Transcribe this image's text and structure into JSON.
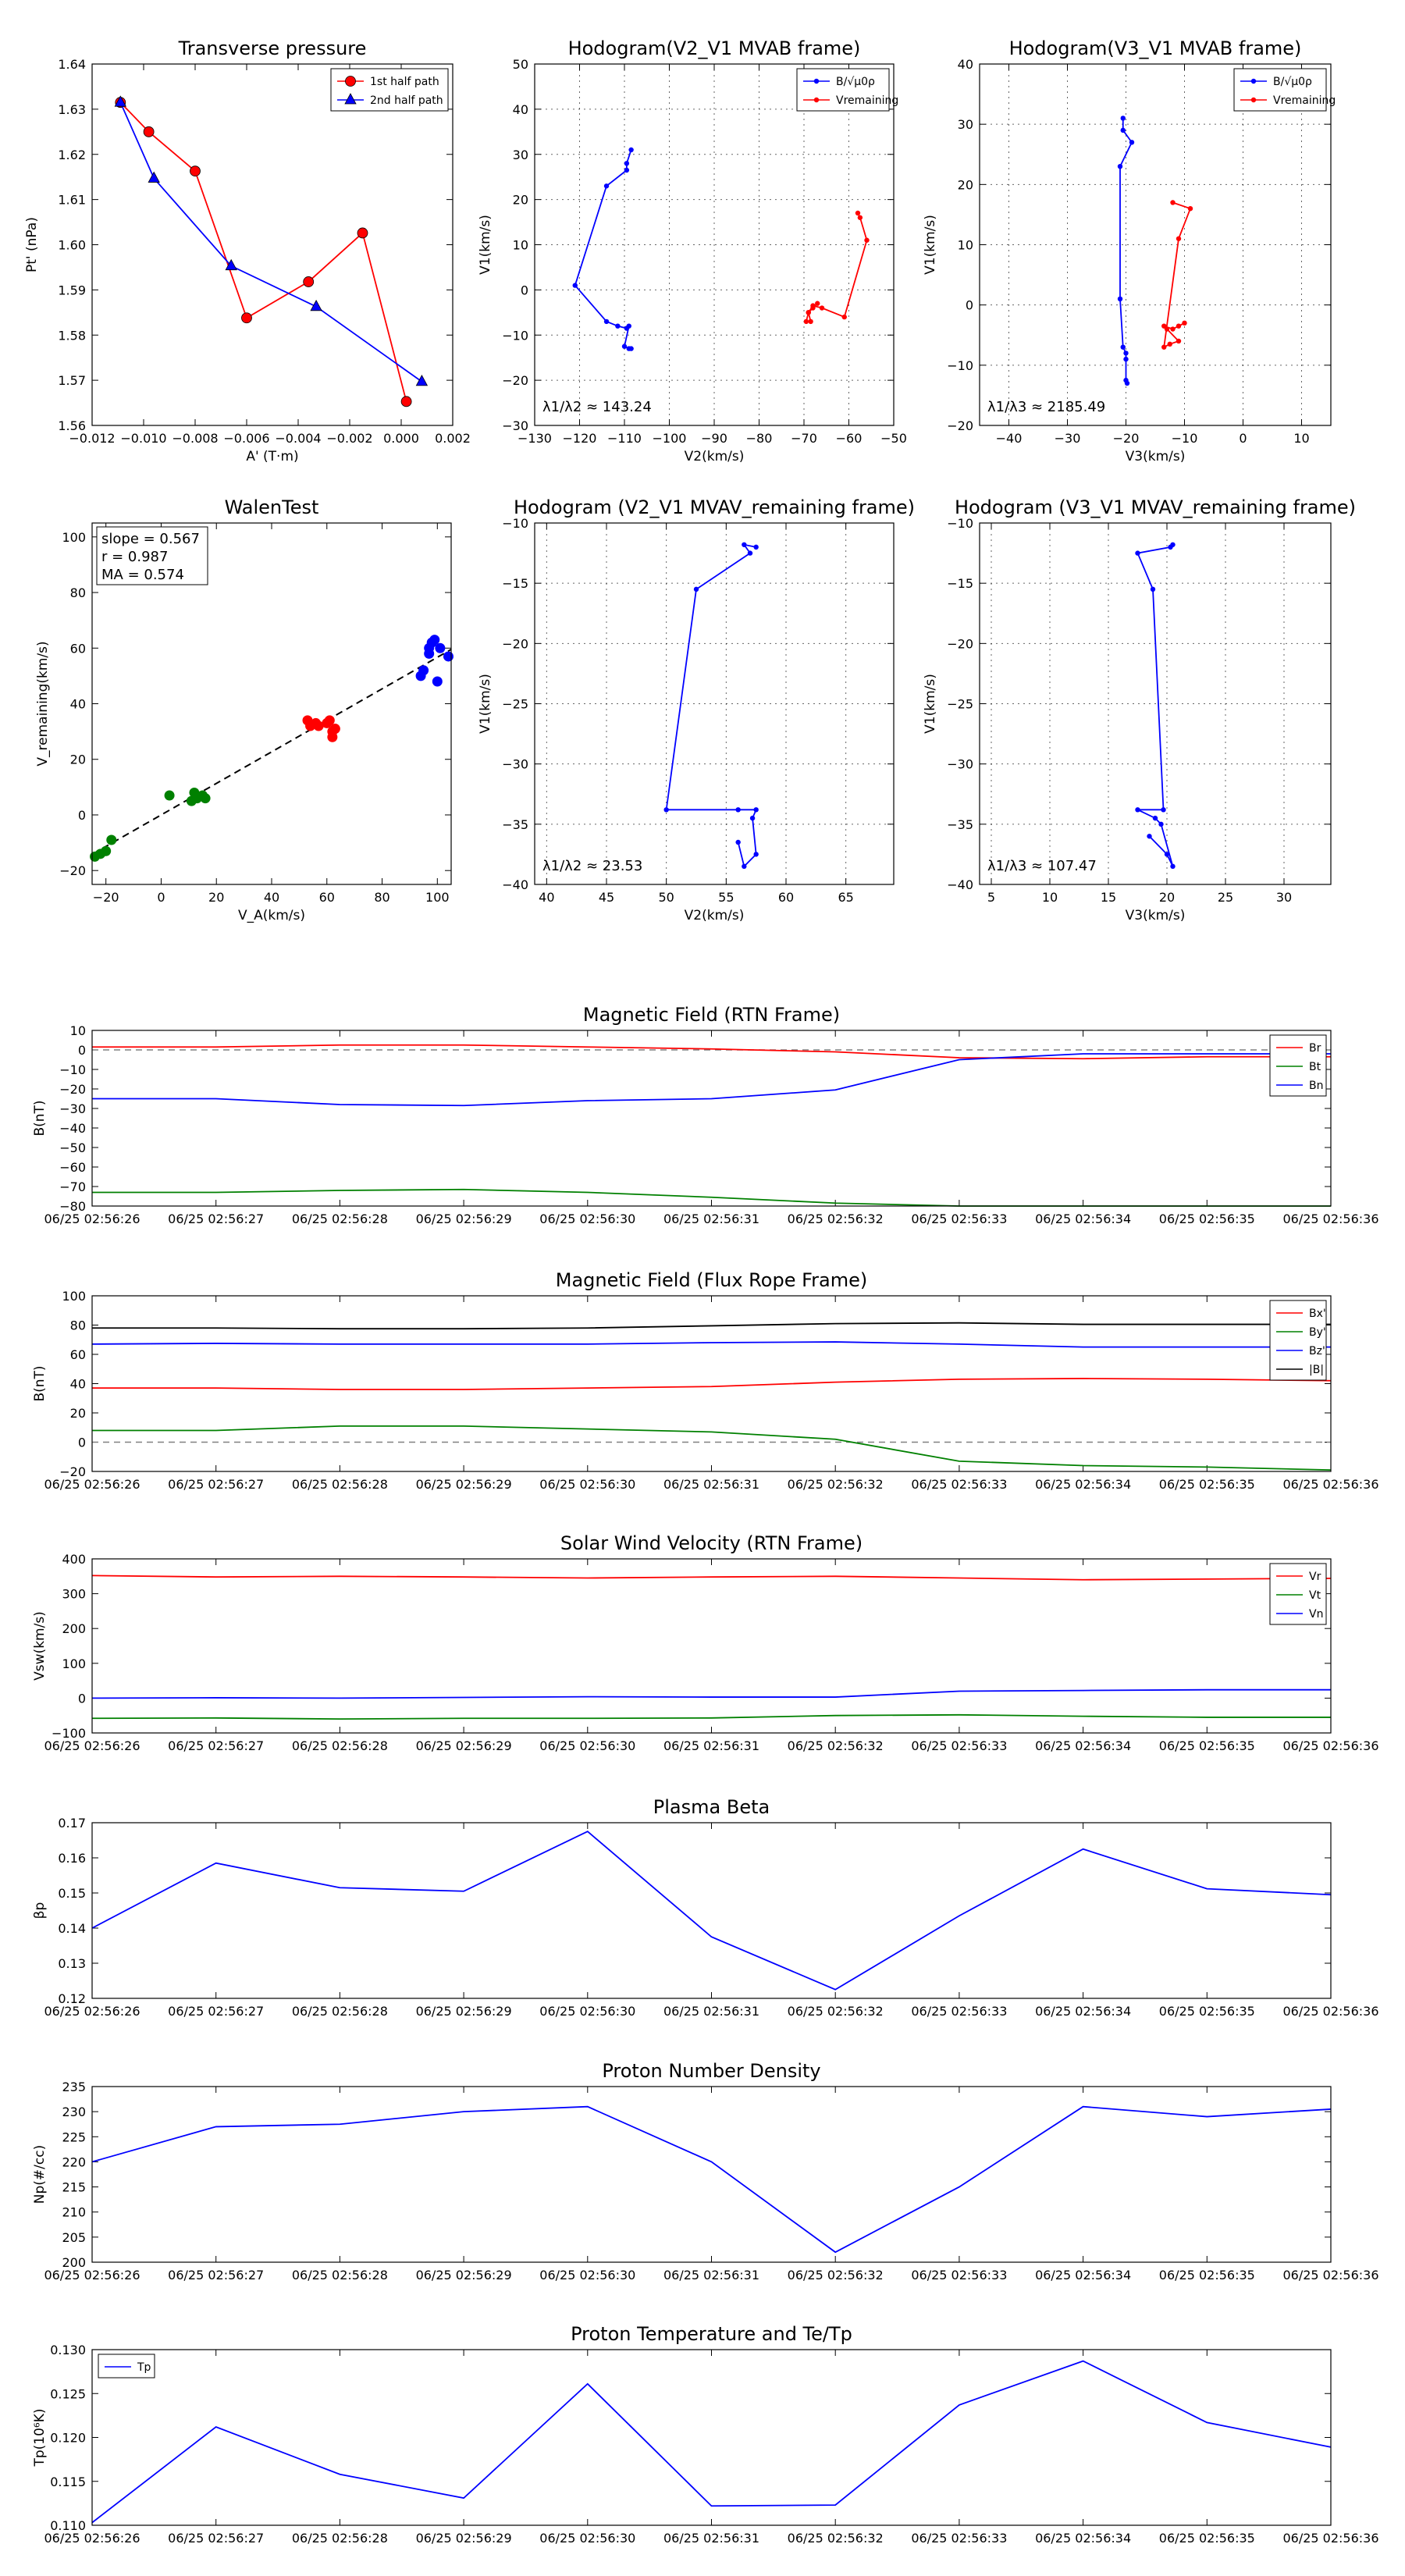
{
  "figure_title": "",
  "colors": {
    "red": "#ff0000",
    "blue": "#0000ff",
    "green": "#008000",
    "black": "#000000",
    "gray": "#808080"
  },
  "chart_data": [
    {
      "id": "c1",
      "type": "scatter",
      "title": "Transverse pressure",
      "xlabel": "A' (T·m)",
      "ylabel": "Pt' (nPa)",
      "xlim": [
        -0.012,
        0.002
      ],
      "ylim": [
        1.56,
        1.64
      ],
      "grid": false,
      "xticks": [
        -0.012,
        -0.01,
        -0.008,
        -0.006,
        -0.004,
        -0.002,
        0.0,
        0.002
      ],
      "xticklabels": [
        "−0.012",
        "−0.010",
        "−0.008",
        "−0.006",
        "−0.004",
        "−0.002",
        "0.000",
        "0.002"
      ],
      "yticks": [
        1.56,
        1.57,
        1.58,
        1.59,
        1.6,
        1.61,
        1.62,
        1.63,
        1.64
      ],
      "yticklabels": [
        "1.56",
        "1.57",
        "1.58",
        "1.59",
        "1.60",
        "1.61",
        "1.62",
        "1.63",
        "1.64"
      ],
      "legend": "top-right",
      "series": [
        {
          "name": "1st half path",
          "color": "#ff0000",
          "marker": "circle",
          "x": [
            -0.0109,
            -0.0098,
            -0.008,
            -0.006,
            -0.0036,
            -0.0015,
            0.0002
          ],
          "y": [
            1.6315,
            1.625,
            1.6163,
            1.5838,
            1.5918,
            1.6026,
            1.5653
          ]
        },
        {
          "name": "2nd half path",
          "color": "#0000ff",
          "marker": "triangle",
          "x": [
            -0.0109,
            -0.0096,
            -0.0066,
            -0.0033,
            0.0008
          ],
          "y": [
            1.6315,
            1.6147,
            1.5953,
            1.5863,
            1.5697
          ]
        }
      ]
    },
    {
      "id": "c2",
      "type": "line",
      "title": "Hodogram(V2_V1 MVAB frame)",
      "xlabel": "V2(km/s)",
      "ylabel": "V1(km/s)",
      "xlim": [
        -130,
        -50
      ],
      "ylim": [
        -30,
        50
      ],
      "grid": true,
      "xticks": [
        -130,
        -120,
        -110,
        -100,
        -90,
        -80,
        -70,
        -60,
        -50
      ],
      "xticklabels": [
        "−130",
        "−120",
        "−110",
        "−100",
        "−90",
        "−80",
        "−70",
        "−60",
        "−50"
      ],
      "yticks": [
        -30,
        -20,
        -10,
        0,
        10,
        20,
        30,
        40,
        50
      ],
      "yticklabels": [
        "−30",
        "−20",
        "−10",
        "0",
        "10",
        "20",
        "30",
        "40",
        "50"
      ],
      "annotation": "λ1/λ2 ≈ 143.24",
      "legend": "top-right",
      "series": [
        {
          "name": "B/√μ0ρ",
          "color": "#0000ff",
          "marker": "dot",
          "x": [
            -108.5,
            -109.5,
            -109.5,
            -114,
            -121,
            -114,
            -111.5,
            -109.5,
            -109,
            -110,
            -109,
            -108.5
          ],
          "y": [
            31,
            28,
            26.5,
            23,
            1,
            -7,
            -8,
            -8.5,
            -8,
            -12.5,
            -13,
            -13
          ]
        },
        {
          "name": "Vremaining",
          "color": "#ff0000",
          "marker": "dot",
          "x": [
            -58,
            -57.5,
            -56,
            -61,
            -66,
            -68,
            -69,
            -69.5,
            -68.5,
            -69,
            -68,
            -67
          ],
          "y": [
            17,
            16,
            11,
            -6,
            -4,
            -3.5,
            -5,
            -7,
            -7,
            -5,
            -4,
            -3
          ]
        }
      ]
    },
    {
      "id": "c3",
      "type": "line",
      "title": "Hodogram(V3_V1 MVAB frame)",
      "xlabel": "V3(km/s)",
      "ylabel": "V1(km/s)",
      "xlim": [
        -45,
        15
      ],
      "ylim": [
        -20,
        40
      ],
      "grid": true,
      "xticks": [
        -40,
        -30,
        -20,
        -10,
        0,
        10
      ],
      "xticklabels": [
        "−40",
        "−30",
        "−20",
        "−10",
        "0",
        "10"
      ],
      "yticks": [
        -20,
        -10,
        0,
        10,
        20,
        30,
        40
      ],
      "yticklabels": [
        "−20",
        "−10",
        "0",
        "10",
        "20",
        "30",
        "40"
      ],
      "annotation": "λ1/λ3 ≈ 2185.49",
      "legend": "top-right",
      "series": [
        {
          "name": "B/√μ0ρ",
          "color": "#0000ff",
          "marker": "dot",
          "x": [
            -20.5,
            -20.5,
            -19,
            -21,
            -21,
            -20.5,
            -20,
            -20,
            -20,
            -19.8
          ],
          "y": [
            31,
            29,
            27,
            23,
            1,
            -7,
            -8,
            -9,
            -12.5,
            -13
          ]
        },
        {
          "name": "Vremaining",
          "color": "#ff0000",
          "marker": "dot",
          "x": [
            -12,
            -9,
            -11,
            -13.5,
            -12.5,
            -11,
            -13,
            -13.5,
            -12,
            -11,
            -10
          ],
          "y": [
            17,
            16,
            11,
            -7,
            -6.5,
            -6,
            -4,
            -3.5,
            -4,
            -3.5,
            -3
          ]
        }
      ]
    },
    {
      "id": "c4",
      "type": "scatter",
      "title": "WalenTest",
      "xlabel": "V_A(km/s)",
      "ylabel": "V_remaining(km/s)",
      "xlim": [
        -25,
        105
      ],
      "ylim": [
        -25,
        105
      ],
      "grid": false,
      "xticks": [
        -20,
        0,
        20,
        40,
        60,
        80,
        100
      ],
      "xticklabels": [
        "−20",
        "0",
        "20",
        "40",
        "60",
        "80",
        "100"
      ],
      "yticks": [
        -20,
        0,
        20,
        40,
        60,
        80,
        100
      ],
      "yticklabels": [
        "−20",
        "0",
        "20",
        "40",
        "60",
        "80",
        "100"
      ],
      "annotations": [
        "slope = 0.567",
        "r = 0.987",
        "MA = 0.574"
      ],
      "fit": {
        "slope": 0.567,
        "x": [
          -25,
          105
        ]
      },
      "series": [
        {
          "color": "#008000",
          "x": [
            -24,
            -22,
            -20,
            -18,
            3,
            11,
            12,
            13,
            15,
            16
          ],
          "y": [
            -15,
            -14,
            -13,
            -9,
            7,
            5,
            8,
            6,
            7,
            6
          ]
        },
        {
          "color": "#ff0000",
          "x": [
            53,
            54,
            56,
            57,
            61,
            62,
            63,
            62,
            60
          ],
          "y": [
            34,
            32,
            33,
            32,
            34,
            30,
            31,
            28,
            33
          ]
        },
        {
          "color": "#0000ff",
          "x": [
            94,
            95,
            97,
            98,
            99,
            101,
            100,
            97,
            104
          ],
          "y": [
            50,
            52,
            60,
            62,
            63,
            60,
            48,
            58,
            57
          ]
        }
      ]
    },
    {
      "id": "c5",
      "type": "line",
      "title": "Hodogram (V2_V1 MVAV_remaining frame)",
      "xlabel": "V2(km/s)",
      "ylabel": "V1(km/s)",
      "xlim": [
        39,
        69
      ],
      "ylim": [
        -40,
        -10
      ],
      "grid": true,
      "xticks": [
        40,
        45,
        50,
        55,
        60,
        65
      ],
      "xticklabels": [
        "40",
        "45",
        "50",
        "55",
        "60",
        "65"
      ],
      "yticks": [
        -40,
        -35,
        -30,
        -25,
        -20,
        -15,
        -10
      ],
      "yticklabels": [
        "−40",
        "−35",
        "−30",
        "−25",
        "−20",
        "−15",
        "−10"
      ],
      "annotation": "λ1/λ2 ≈ 23.53",
      "series": [
        {
          "color": "#0000ff",
          "marker": "dot",
          "x": [
            57.5,
            56.5,
            57,
            52.5,
            50,
            56,
            57.5,
            57.2,
            57.5,
            56.5,
            56
          ],
          "y": [
            -12,
            -11.8,
            -12.5,
            -15.5,
            -33.8,
            -33.8,
            -33.8,
            -34.5,
            -37.5,
            -38.5,
            -36.5
          ]
        }
      ]
    },
    {
      "id": "c6",
      "type": "line",
      "title": "Hodogram (V3_V1 MVAV_remaining frame)",
      "xlabel": "V3(km/s)",
      "ylabel": "V1(km/s)",
      "xlim": [
        4,
        34
      ],
      "ylim": [
        -40,
        -10
      ],
      "grid": true,
      "xticks": [
        5,
        10,
        15,
        20,
        25,
        30
      ],
      "xticklabels": [
        "5",
        "10",
        "15",
        "20",
        "25",
        "30"
      ],
      "yticks": [
        -40,
        -35,
        -30,
        -25,
        -20,
        -15,
        -10
      ],
      "yticklabels": [
        "−40",
        "−35",
        "−30",
        "−25",
        "−20",
        "−15",
        "−10"
      ],
      "annotation": "λ1/λ3 ≈ 107.47",
      "series": [
        {
          "color": "#0000ff",
          "marker": "dot",
          "x": [
            20.5,
            20.3,
            17.5,
            18.8,
            19.7,
            17.5,
            19,
            19.5,
            20.5,
            20,
            18.5
          ],
          "y": [
            -11.8,
            -12,
            -12.5,
            -15.5,
            -33.8,
            -33.8,
            -34.5,
            -35,
            -38.5,
            -37.5,
            -36
          ]
        }
      ]
    },
    {
      "id": "c7",
      "type": "line",
      "title": "Magnetic Field (RTN Frame)",
      "ylabel": "B(nT)",
      "ylim": [
        -80,
        10
      ],
      "yticks": [
        -80,
        -70,
        -60,
        -50,
        -40,
        -30,
        -20,
        -10,
        0,
        10
      ],
      "yticklabels": [
        "−80",
        "−70",
        "−60",
        "−50",
        "−40",
        "−30",
        "−20",
        "−10",
        "0",
        "10"
      ],
      "zero_line": true,
      "legend": "top-right",
      "series": [
        {
          "name": "Br",
          "color": "#ff0000",
          "values": [
            1.5,
            1.5,
            2.5,
            2.5,
            1.5,
            0.5,
            -1,
            -4,
            -4.5,
            -3.5,
            -3.5
          ]
        },
        {
          "name": "Bt",
          "color": "#008000",
          "values": [
            -73,
            -73,
            -72,
            -71.5,
            -73,
            -75.5,
            -78.5,
            -80.5,
            -80.5,
            -80.5,
            -80.5
          ]
        },
        {
          "name": "Bn",
          "color": "#0000ff",
          "values": [
            -25,
            -25,
            -28,
            -28.5,
            -26,
            -25,
            -20.5,
            -5,
            -2,
            -2,
            -2
          ]
        }
      ]
    },
    {
      "id": "c8",
      "type": "line",
      "title": "Magnetic Field (Flux Rope Frame)",
      "ylabel": "B(nT)",
      "ylim": [
        -20,
        100
      ],
      "yticks": [
        -20,
        0,
        20,
        40,
        60,
        80,
        100
      ],
      "yticklabels": [
        "−20",
        "0",
        "20",
        "40",
        "60",
        "80",
        "100"
      ],
      "zero_line": true,
      "legend": "top-right",
      "series": [
        {
          "name": "Bx'",
          "color": "#ff0000",
          "values": [
            37,
            37,
            36,
            36,
            37,
            38,
            41,
            43,
            43.5,
            43,
            42
          ]
        },
        {
          "name": "By'",
          "color": "#008000",
          "values": [
            8,
            8,
            11,
            11,
            9,
            7,
            2,
            -13,
            -16,
            -17,
            -19
          ]
        },
        {
          "name": "Bz'",
          "color": "#0000ff",
          "values": [
            67,
            67.5,
            67,
            67,
            67,
            68,
            68.5,
            67,
            65,
            65,
            65
          ]
        },
        {
          "name": "|B|",
          "color": "#000000",
          "values": [
            78,
            78,
            77.5,
            77.5,
            78,
            79.5,
            81,
            81.5,
            80.5,
            80.5,
            80.5
          ]
        }
      ]
    },
    {
      "id": "c9",
      "type": "line",
      "title": "Solar Wind Velocity (RTN Frame)",
      "ylabel": "Vsw(km/s)",
      "ylim": [
        -100,
        400
      ],
      "yticks": [
        -100,
        0,
        100,
        200,
        300,
        400
      ],
      "yticklabels": [
        "−100",
        "0",
        "100",
        "200",
        "300",
        "400"
      ],
      "legend": "top-right",
      "series": [
        {
          "name": "Vr",
          "color": "#ff0000",
          "values": [
            352,
            348,
            350,
            348,
            345,
            348,
            350,
            345,
            340,
            342,
            344
          ]
        },
        {
          "name": "Vt",
          "color": "#008000",
          "values": [
            -58,
            -57,
            -60,
            -58,
            -58,
            -57,
            -50,
            -48,
            -52,
            -55,
            -55
          ]
        },
        {
          "name": "Vn",
          "color": "#0000ff",
          "values": [
            0,
            1,
            0,
            2,
            4,
            3,
            3,
            20,
            22,
            24,
            24
          ]
        }
      ]
    },
    {
      "id": "c10",
      "type": "line",
      "title": "Plasma Beta",
      "ylabel": "βp",
      "ylim": [
        0.12,
        0.17
      ],
      "yticks": [
        0.12,
        0.13,
        0.14,
        0.15,
        0.16,
        0.17
      ],
      "yticklabels": [
        "0.12",
        "0.13",
        "0.14",
        "0.15",
        "0.16",
        "0.17"
      ],
      "series": [
        {
          "name": "βp",
          "color": "#0000ff",
          "values": [
            0.14,
            0.1585,
            0.1515,
            0.1505,
            0.1675,
            0.1375,
            0.1225,
            0.1435,
            0.1625,
            0.1512,
            0.1495
          ]
        }
      ]
    },
    {
      "id": "c11",
      "type": "line",
      "title": "Proton Number Density",
      "ylabel": "Np(#/cc)",
      "ylim": [
        200,
        235
      ],
      "yticks": [
        200,
        205,
        210,
        215,
        220,
        225,
        230,
        235
      ],
      "yticklabels": [
        "200",
        "205",
        "210",
        "215",
        "220",
        "225",
        "230",
        "235"
      ],
      "series": [
        {
          "name": "Np",
          "color": "#0000ff",
          "values": [
            220,
            227,
            227.5,
            230,
            231,
            220,
            202,
            215,
            231,
            229,
            230.5
          ]
        }
      ]
    },
    {
      "id": "c12",
      "type": "line",
      "title": "Proton Temperature and Te/Tp",
      "ylabel": "Tp(10⁶K)",
      "ylim": [
        0.11,
        0.13
      ],
      "yticks": [
        0.11,
        0.115,
        0.12,
        0.125,
        0.13
      ],
      "yticklabels": [
        "0.110",
        "0.115",
        "0.120",
        "0.125",
        "0.130"
      ],
      "legend": "top-left",
      "series": [
        {
          "name": "Tp",
          "color": "#0000ff",
          "values": [
            0.1103,
            0.1212,
            0.1158,
            0.1131,
            0.1261,
            0.1122,
            0.1123,
            0.1237,
            0.1287,
            0.1217,
            0.1189
          ]
        }
      ]
    }
  ],
  "time_ticks": [
    "06/25 02:56:26",
    "06/25 02:56:27",
    "06/25 02:56:28",
    "06/25 02:56:29",
    "06/25 02:56:30",
    "06/25 02:56:31",
    "06/25 02:56:32",
    "06/25 02:56:33",
    "06/25 02:56:34",
    "06/25 02:56:35",
    "06/25 02:56:36"
  ]
}
